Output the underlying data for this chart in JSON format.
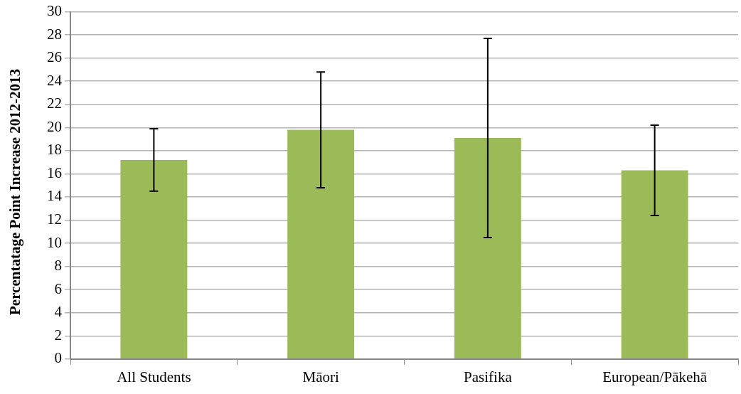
{
  "chart_data": {
    "type": "bar",
    "ylabel": "Percentatage Point Increase 2012-2013",
    "categories": [
      "All Students",
      "Māori",
      "Pasifika",
      "European/Pākehā"
    ],
    "values": [
      17.2,
      19.8,
      19.1,
      16.3
    ],
    "errors": [
      2.7,
      5.0,
      8.6,
      3.9
    ],
    "color": "#9bbb59",
    "ylim": [
      0,
      30
    ],
    "yticks": [
      0,
      2,
      4,
      6,
      8,
      10,
      12,
      14,
      16,
      18,
      20,
      22,
      24,
      26,
      28,
      30
    ],
    "grid": "y",
    "legend": false
  }
}
